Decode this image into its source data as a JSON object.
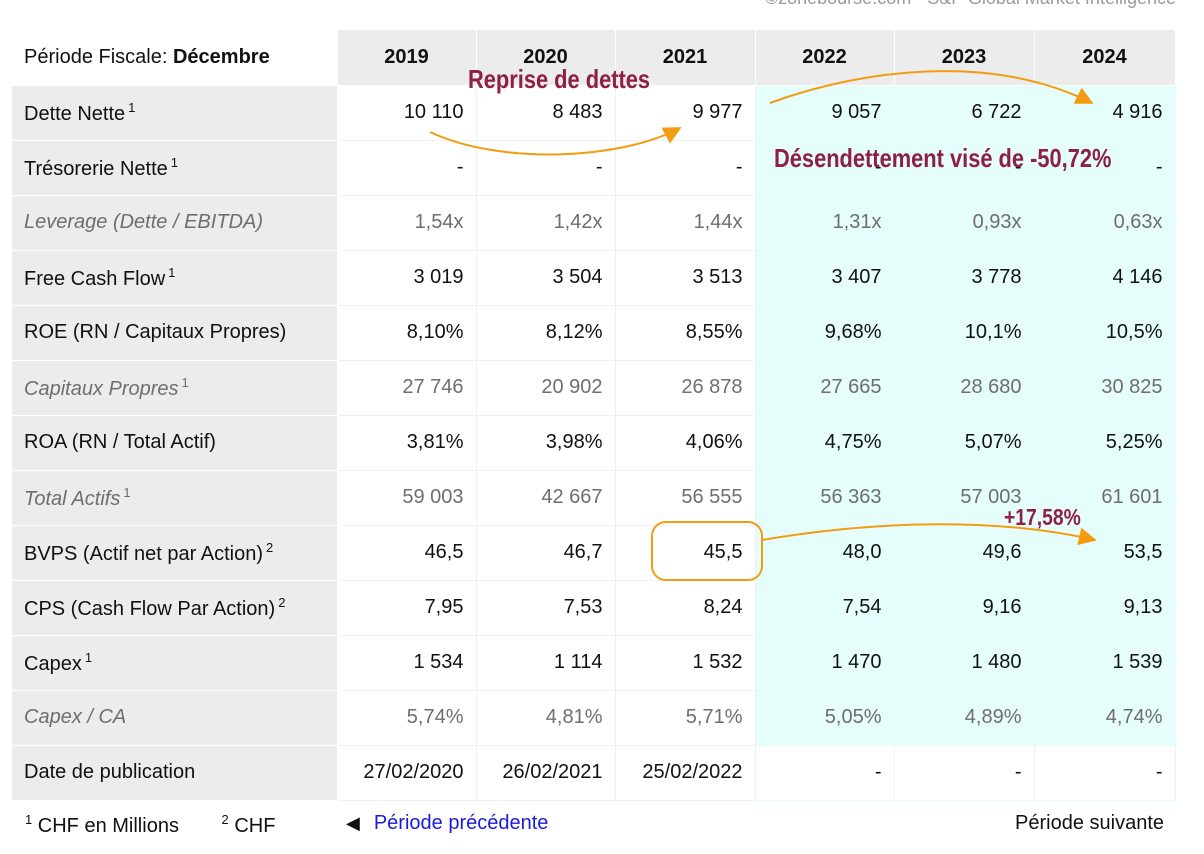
{
  "source": "©zonebourse.com - S&P Global Market Intelligence",
  "table": {
    "header_label": "Période Fiscale:",
    "header_value": "Décembre",
    "years": [
      "2019",
      "2020",
      "2021",
      "2022",
      "2023",
      "2024"
    ],
    "rows": [
      {
        "label": "Dette Nette",
        "note": "1",
        "style": "normal",
        "values": [
          "10 110",
          "8 483",
          "9 977",
          "9 057",
          "6 722",
          "4 916"
        ]
      },
      {
        "label": "Trésorerie Nette",
        "note": "1",
        "style": "normal",
        "values": [
          "-",
          "-",
          "-",
          "-",
          "-",
          "-"
        ]
      },
      {
        "label": "Leverage (Dette / EBITDA)",
        "note": "",
        "style": "gray",
        "values": [
          "1,54x",
          "1,42x",
          "1,44x",
          "1,31x",
          "0,93x",
          "0,63x"
        ]
      },
      {
        "label": "Free Cash Flow",
        "note": "1",
        "style": "normal",
        "values": [
          "3 019",
          "3 504",
          "3 513",
          "3 407",
          "3 778",
          "4 146"
        ]
      },
      {
        "label": "ROE (RN / Capitaux Propres)",
        "note": "",
        "style": "normal",
        "values": [
          "8,10%",
          "8,12%",
          "8,55%",
          "9,68%",
          "10,1%",
          "10,5%"
        ]
      },
      {
        "label": "Capitaux Propres",
        "note": "1",
        "style": "gray",
        "values": [
          "27 746",
          "20 902",
          "26 878",
          "27 665",
          "28 680",
          "30 825"
        ]
      },
      {
        "label": "ROA (RN / Total Actif)",
        "note": "",
        "style": "normal",
        "values": [
          "3,81%",
          "3,98%",
          "4,06%",
          "4,75%",
          "5,07%",
          "5,25%"
        ]
      },
      {
        "label": "Total Actifs",
        "note": "1",
        "style": "gray",
        "values": [
          "59 003",
          "42 667",
          "56 555",
          "56 363",
          "57 003",
          "61 601"
        ]
      },
      {
        "label": "BVPS (Actif net par Action)",
        "note": "2",
        "style": "normal",
        "values": [
          "46,5",
          "46,7",
          "45,5",
          "48,0",
          "49,6",
          "53,5"
        ]
      },
      {
        "label": "CPS (Cash Flow Par Action)",
        "note": "2",
        "style": "normal",
        "values": [
          "7,95",
          "7,53",
          "8,24",
          "7,54",
          "9,16",
          "9,13"
        ]
      },
      {
        "label": "Capex",
        "note": "1",
        "style": "normal",
        "values": [
          "1 534",
          "1 114",
          "1 532",
          "1 470",
          "1 480",
          "1 539"
        ]
      },
      {
        "label": "Capex / CA",
        "note": "",
        "style": "gray",
        "values": [
          "5,74%",
          "4,81%",
          "5,71%",
          "5,05%",
          "4,89%",
          "4,74%"
        ]
      },
      {
        "label": "Date de publication",
        "note": "",
        "style": "normal",
        "values": [
          "27/02/2020",
          "26/02/2021",
          "25/02/2022",
          "-",
          "-",
          "-"
        ]
      }
    ]
  },
  "footer": {
    "notes": [
      {
        "num": "1",
        "text": "CHF en Millions"
      },
      {
        "num": "2",
        "text": "CHF"
      }
    ],
    "prev_label": "Période précédente",
    "next_label": "Période suivante"
  },
  "annotations": {
    "reprise": "Reprise de dettes",
    "desendettement": "Désendettement visé de -50,72%",
    "bvps_growth": "+17,58%"
  },
  "colors": {
    "forecast_bg": "#e5fdfb",
    "label_bg": "#ececec",
    "annotation_text": "#8e1f45",
    "annotation_arrow": "#f39c12",
    "link": "#1a1adb"
  }
}
